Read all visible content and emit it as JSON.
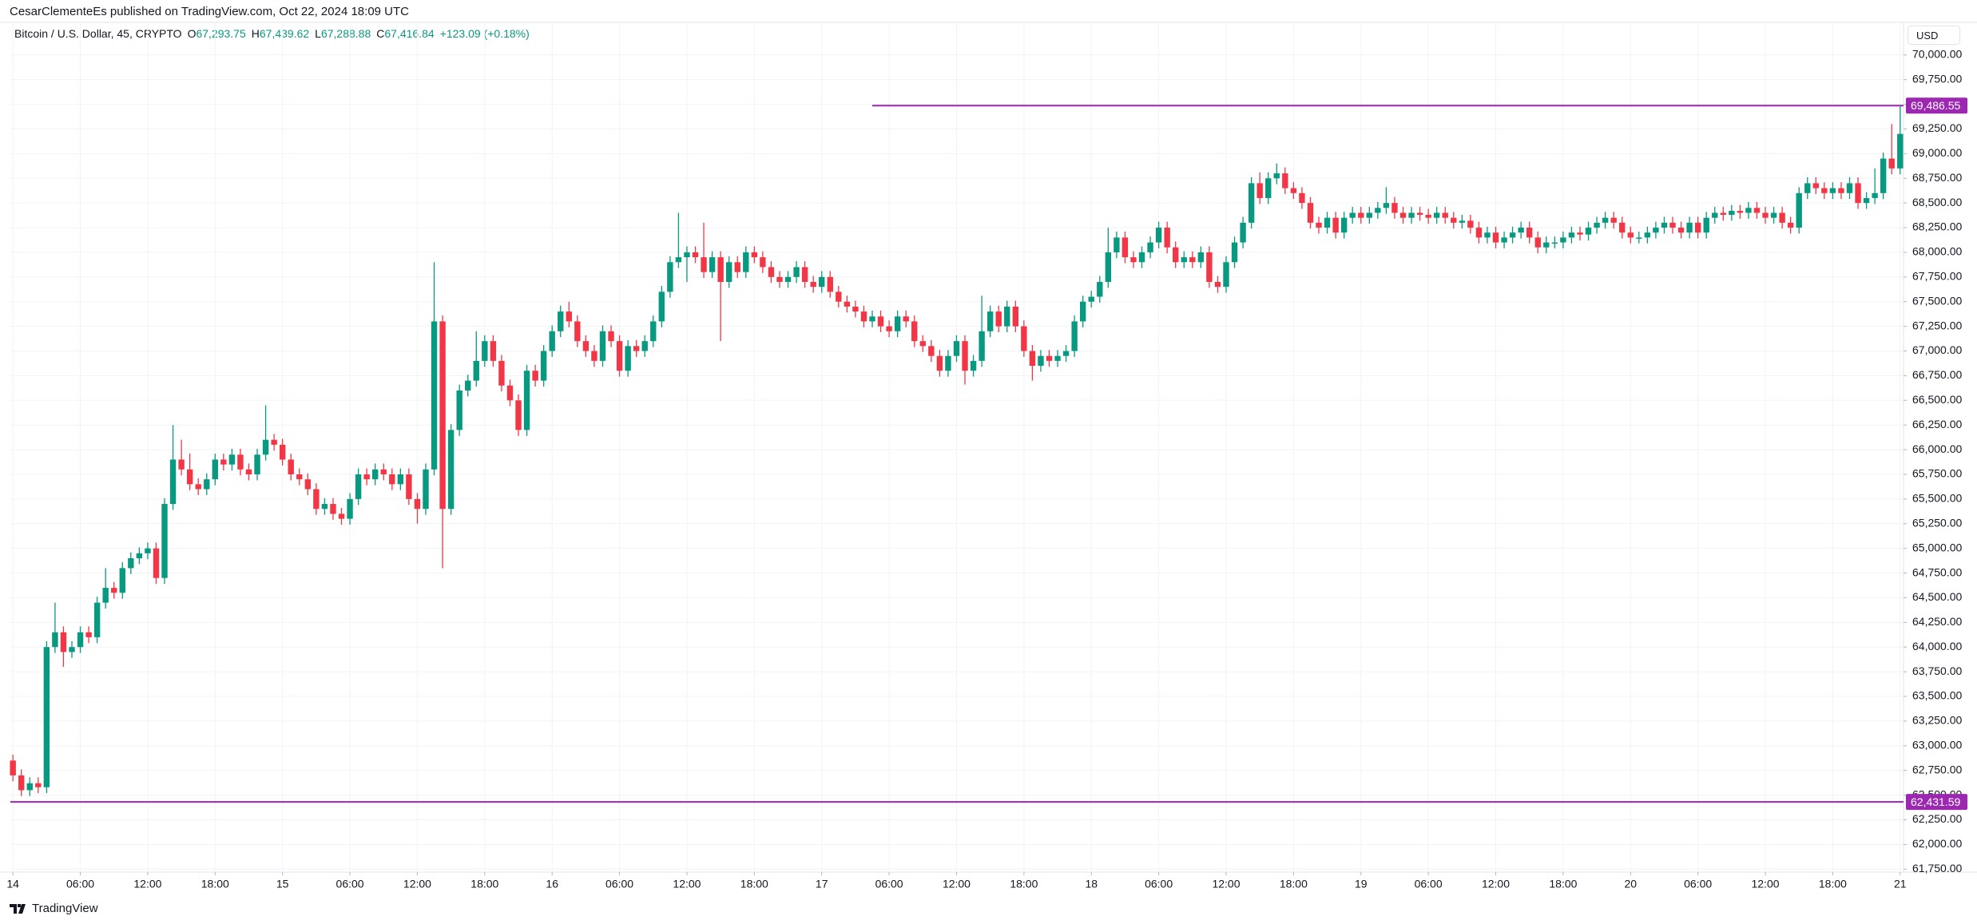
{
  "header": {
    "publisher": "CesarClementeEs published on TradingView.com, Oct 22, 2024 18:09 UTC"
  },
  "chart_data": {
    "type": "candlestick",
    "symbol": "Bitcoin / U.S. Dollar, 45, CRYPTO",
    "legend": [
      {
        "prefix": "O",
        "text": "67,293.75"
      },
      {
        "prefix": "H",
        "text": "67,439.62"
      },
      {
        "prefix": "L",
        "text": "67,288.88"
      },
      {
        "prefix": "C",
        "text": "67,416.84"
      },
      {
        "prefix": "",
        "text": "+123.09 (+0.18%)"
      }
    ],
    "currency": "USD",
    "up_color": "#089981",
    "down_color": "#f23645",
    "grid": true,
    "open": [
      62850,
      62700,
      62550,
      62620,
      62580,
      64000,
      64150,
      63950,
      64000,
      64150,
      64100,
      64450,
      64600,
      64550,
      64800,
      64900,
      64950,
      65000,
      64700,
      65450,
      65900,
      65800,
      65650,
      65600,
      65700,
      65900,
      65850,
      65950,
      65800,
      65750,
      65950,
      66100,
      66050,
      65900,
      65750,
      65700,
      65600,
      65400,
      65450,
      65350,
      65300,
      65500,
      65750,
      65700,
      65800,
      65750,
      65650,
      65750,
      65500,
      65400,
      65800,
      67300,
      65400,
      66200,
      66600,
      66700,
      66900,
      67100,
      66900,
      66650,
      66500,
      66200,
      66800,
      66700,
      67000,
      67200,
      67400,
      67300,
      67100,
      67000,
      66900,
      67200,
      67100,
      66800,
      67050,
      67000,
      67100,
      67300,
      67600,
      67900,
      67950,
      68000,
      67950,
      67800,
      67950,
      67700,
      67900,
      67800,
      68000,
      67950,
      67850,
      67750,
      67700,
      67750,
      67850,
      67700,
      67650,
      67750,
      67600,
      67500,
      67450,
      67400,
      67300,
      67350,
      67250,
      67200,
      67350,
      67300,
      67100,
      67050,
      66950,
      66800,
      66950,
      67100,
      66800,
      66900,
      67200,
      67400,
      67250,
      67450,
      67250,
      67000,
      66850,
      66950,
      66900,
      66950,
      67000,
      67300,
      67500,
      67550,
      67700,
      68000,
      68150,
      67950,
      67900,
      68000,
      68100,
      68250,
      68050,
      67900,
      67950,
      67900,
      68000,
      67700,
      67650,
      67900,
      68100,
      68300,
      68700,
      68550,
      68750,
      68800,
      68650,
      68600,
      68500,
      68300,
      68250,
      68350,
      68200,
      68350,
      68400,
      68350,
      68400,
      68450,
      68500,
      68400,
      68350,
      68400,
      68380,
      68350,
      68400,
      68350,
      68300,
      68320,
      68250,
      68150,
      68200,
      68100,
      68150,
      68200,
      68250,
      68150,
      68050,
      68100,
      68100,
      68150,
      68200,
      68180,
      68250,
      68300,
      68350,
      68300,
      68200,
      68150,
      68150,
      68200,
      68250,
      68300,
      68250,
      68200,
      68300,
      68200,
      68350,
      68400,
      68380,
      68420,
      68400,
      68450,
      68400,
      68350,
      68400,
      68300,
      68250,
      68600,
      68700,
      68650,
      68600,
      68650,
      68600,
      68700,
      68500,
      68550,
      68600,
      68950,
      68850
    ],
    "high": [
      62910,
      62760,
      62680,
      62680,
      64060,
      64450,
      64210,
      64060,
      64210,
      64210,
      64510,
      64800,
      64660,
      64860,
      64960,
      65010,
      65060,
      65060,
      65510,
      66250,
      66100,
      65960,
      65710,
      65760,
      65960,
      65960,
      66010,
      66010,
      65860,
      66010,
      66450,
      66160,
      66110,
      65960,
      65810,
      65760,
      65660,
      65510,
      65510,
      65410,
      65560,
      65810,
      65810,
      65860,
      65860,
      65810,
      65810,
      65810,
      65560,
      65860,
      67900,
      67360,
      66260,
      66660,
      66760,
      67200,
      67160,
      67160,
      66960,
      66710,
      66560,
      66860,
      66860,
      67060,
      67260,
      67460,
      67500,
      67360,
      67160,
      67060,
      67260,
      67260,
      67160,
      67110,
      67110,
      67160,
      67360,
      67660,
      67960,
      68400,
      68060,
      68060,
      68300,
      68010,
      68010,
      67960,
      67960,
      68060,
      68060,
      68010,
      67910,
      67810,
      67810,
      67910,
      67910,
      67760,
      67810,
      67810,
      67660,
      67560,
      67510,
      67460,
      67410,
      67410,
      67310,
      67410,
      67410,
      67360,
      67160,
      67110,
      67010,
      67010,
      67160,
      67160,
      66960,
      67560,
      67460,
      67460,
      67510,
      67510,
      67310,
      67060,
      67010,
      67010,
      67010,
      67060,
      67360,
      67560,
      67610,
      67760,
      68250,
      68210,
      68210,
      68010,
      68060,
      68160,
      68310,
      68310,
      68110,
      68010,
      68010,
      68060,
      68060,
      67760,
      67960,
      68160,
      68360,
      68760,
      68810,
      68810,
      68900,
      68860,
      68710,
      68660,
      68560,
      68360,
      68410,
      68410,
      68410,
      68460,
      68460,
      68460,
      68510,
      68660,
      68560,
      68460,
      68460,
      68460,
      68440,
      68460,
      68460,
      68410,
      68380,
      68380,
      68310,
      68260,
      68260,
      68210,
      68260,
      68310,
      68310,
      68210,
      68160,
      68160,
      68210,
      68260,
      68260,
      68310,
      68360,
      68410,
      68410,
      68360,
      68260,
      68210,
      68260,
      68310,
      68360,
      68360,
      68310,
      68360,
      68360,
      68410,
      68460,
      68460,
      68480,
      68480,
      68510,
      68510,
      68460,
      68460,
      68460,
      68360,
      68660,
      68760,
      68760,
      68710,
      68710,
      68710,
      68760,
      68760,
      68610,
      68850,
      69010,
      69300,
      69486.55
    ],
    "low": [
      62640,
      62490,
      62490,
      62520,
      62520,
      63940,
      63800,
      63890,
      63940,
      64040,
      64040,
      64390,
      64490,
      64490,
      64740,
      64840,
      64890,
      64640,
      64640,
      65390,
      65740,
      65590,
      65540,
      65540,
      65640,
      65790,
      65790,
      65740,
      65690,
      65690,
      65890,
      65990,
      65840,
      65690,
      65640,
      65540,
      65340,
      65340,
      65290,
      65240,
      65240,
      65440,
      65640,
      65640,
      65690,
      65590,
      65590,
      65440,
      65250,
      65340,
      65740,
      64800,
      65340,
      66140,
      66540,
      66640,
      66840,
      66840,
      66590,
      66440,
      66140,
      66140,
      66640,
      66640,
      66940,
      67140,
      67240,
      67040,
      66940,
      66840,
      66840,
      67040,
      66740,
      66740,
      66940,
      66940,
      67040,
      67240,
      67540,
      67840,
      67700,
      67890,
      67740,
      67740,
      67100,
      67640,
      67740,
      67740,
      67890,
      67790,
      67690,
      67640,
      67640,
      67690,
      67640,
      67590,
      67590,
      67540,
      67440,
      67390,
      67340,
      67240,
      67240,
      67190,
      67140,
      67140,
      67240,
      67040,
      66990,
      66890,
      66740,
      66740,
      66890,
      66660,
      66740,
      66840,
      67140,
      67190,
      67190,
      67190,
      66940,
      66700,
      66790,
      66840,
      66840,
      66890,
      66940,
      67240,
      67440,
      67490,
      67640,
      67940,
      67890,
      67840,
      67840,
      67940,
      68040,
      67990,
      67840,
      67840,
      67840,
      67840,
      67640,
      67590,
      67590,
      67840,
      68040,
      68240,
      68490,
      68490,
      68690,
      68590,
      68540,
      68440,
      68240,
      68190,
      68190,
      68140,
      68140,
      68290,
      68290,
      68290,
      68340,
      68390,
      68340,
      68290,
      68290,
      68320,
      68290,
      68290,
      68290,
      68240,
      68240,
      68190,
      68090,
      68090,
      68040,
      68040,
      68090,
      68140,
      68090,
      67990,
      67990,
      68040,
      68040,
      68090,
      68120,
      68120,
      68190,
      68240,
      68240,
      68140,
      68090,
      68090,
      68090,
      68140,
      68190,
      68190,
      68140,
      68140,
      68140,
      68140,
      68290,
      68320,
      68320,
      68340,
      68340,
      68340,
      68290,
      68290,
      68240,
      68190,
      68190,
      68540,
      68590,
      68540,
      68540,
      68540,
      68540,
      68440,
      68440,
      68490,
      68540,
      68790,
      68790
    ],
    "close": [
      62700,
      62550,
      62620,
      62580,
      64000,
      64150,
      63950,
      64000,
      64150,
      64100,
      64450,
      64600,
      64550,
      64800,
      64900,
      64950,
      65000,
      64700,
      65450,
      65900,
      65800,
      65650,
      65600,
      65700,
      65900,
      65850,
      65950,
      65800,
      65750,
      65950,
      66100,
      66050,
      65900,
      65750,
      65700,
      65600,
      65400,
      65450,
      65350,
      65300,
      65500,
      65750,
      65700,
      65800,
      65750,
      65650,
      65750,
      65500,
      65400,
      65800,
      67300,
      65400,
      66200,
      66600,
      66700,
      66900,
      67100,
      66900,
      66650,
      66500,
      66200,
      66800,
      66700,
      67000,
      67200,
      67400,
      67300,
      67100,
      67000,
      66900,
      67200,
      67100,
      66800,
      67050,
      67000,
      67100,
      67300,
      67600,
      67900,
      67950,
      68000,
      67950,
      67800,
      67950,
      67700,
      67900,
      67800,
      68000,
      67950,
      67850,
      67750,
      67700,
      67750,
      67850,
      67700,
      67650,
      67750,
      67600,
      67500,
      67450,
      67400,
      67300,
      67350,
      67250,
      67200,
      67350,
      67300,
      67100,
      67050,
      66950,
      66800,
      66950,
      67100,
      66800,
      66900,
      67200,
      67400,
      67250,
      67450,
      67250,
      67000,
      66850,
      66950,
      66900,
      66950,
      67000,
      67300,
      67500,
      67550,
      67700,
      68000,
      68150,
      67950,
      67900,
      68000,
      68100,
      68250,
      68050,
      67900,
      67950,
      67900,
      68000,
      67700,
      67650,
      67900,
      68100,
      68300,
      68700,
      68550,
      68750,
      68800,
      68650,
      68600,
      68500,
      68300,
      68250,
      68350,
      68200,
      68350,
      68400,
      68350,
      68400,
      68450,
      68500,
      68400,
      68350,
      68400,
      68380,
      68350,
      68400,
      68350,
      68300,
      68320,
      68250,
      68150,
      68200,
      68100,
      68150,
      68200,
      68250,
      68150,
      68050,
      68100,
      68100,
      68150,
      68200,
      68180,
      68250,
      68300,
      68350,
      68300,
      68200,
      68150,
      68150,
      68200,
      68250,
      68300,
      68250,
      68200,
      68300,
      68200,
      68350,
      68400,
      68380,
      68420,
      68400,
      68450,
      68400,
      68350,
      68400,
      68300,
      68250,
      68600,
      68700,
      68650,
      68600,
      68650,
      68600,
      68700,
      68500,
      68550,
      68600,
      68950,
      68850,
      69200
    ],
    "xlim": [
      -0.3,
      224.4
    ],
    "xticks": [
      {
        "value": 0,
        "label": "14"
      },
      {
        "value": 8,
        "label": "06:00"
      },
      {
        "value": 16,
        "label": "12:00"
      },
      {
        "value": 24,
        "label": "18:00"
      },
      {
        "value": 32,
        "label": "15"
      },
      {
        "value": 40,
        "label": "06:00"
      },
      {
        "value": 48,
        "label": "12:00"
      },
      {
        "value": 56,
        "label": "18:00"
      },
      {
        "value": 64,
        "label": "16"
      },
      {
        "value": 72,
        "label": "06:00"
      },
      {
        "value": 80,
        "label": "12:00"
      },
      {
        "value": 88,
        "label": "18:00"
      },
      {
        "value": 96,
        "label": "17"
      },
      {
        "value": 104,
        "label": "06:00"
      },
      {
        "value": 112,
        "label": "12:00"
      },
      {
        "value": 120,
        "label": "18:00"
      },
      {
        "value": 128,
        "label": "18"
      },
      {
        "value": 136,
        "label": "06:00"
      },
      {
        "value": 144,
        "label": "12:00"
      },
      {
        "value": 152,
        "label": "18:00"
      },
      {
        "value": 160,
        "label": "19"
      },
      {
        "value": 168,
        "label": "06:00"
      },
      {
        "value": 176,
        "label": "12:00"
      },
      {
        "value": 184,
        "label": "18:00"
      },
      {
        "value": 192,
        "label": "20"
      },
      {
        "value": 200,
        "label": "06:00"
      },
      {
        "value": 208,
        "label": "12:00"
      },
      {
        "value": 216,
        "label": "18:00"
      },
      {
        "value": 224,
        "label": "21"
      }
    ],
    "ylim": [
      61720,
      70330
    ],
    "yticks": [
      {
        "value": 70000,
        "label": "70,000.00"
      },
      {
        "value": 69750,
        "label": "69,750.00"
      },
      {
        "value": 69500,
        "label": "69,500.00"
      },
      {
        "value": 69250,
        "label": "69,250.00"
      },
      {
        "value": 69000,
        "label": "69,000.00"
      },
      {
        "value": 68750,
        "label": "68,750.00"
      },
      {
        "value": 68500,
        "label": "68,500.00"
      },
      {
        "value": 68250,
        "label": "68,250.00"
      },
      {
        "value": 68000,
        "label": "68,000.00"
      },
      {
        "value": 67750,
        "label": "67,750.00"
      },
      {
        "value": 67500,
        "label": "67,500.00"
      },
      {
        "value": 67250,
        "label": "67,250.00"
      },
      {
        "value": 67000,
        "label": "67,000.00"
      },
      {
        "value": 66750,
        "label": "66,750.00"
      },
      {
        "value": 66500,
        "label": "66,500.00"
      },
      {
        "value": 66250,
        "label": "66,250.00"
      },
      {
        "value": 66000,
        "label": "66,000.00"
      },
      {
        "value": 65750,
        "label": "65,750.00"
      },
      {
        "value": 65500,
        "label": "65,500.00"
      },
      {
        "value": 65250,
        "label": "65,250.00"
      },
      {
        "value": 65000,
        "label": "65,000.00"
      },
      {
        "value": 64750,
        "label": "64,750.00"
      },
      {
        "value": 64500,
        "label": "64,500.00"
      },
      {
        "value": 64250,
        "label": "64,250.00"
      },
      {
        "value": 64000,
        "label": "64,000.00"
      },
      {
        "value": 63750,
        "label": "63,750.00"
      },
      {
        "value": 63500,
        "label": "63,500.00"
      },
      {
        "value": 63250,
        "label": "63,250.00"
      },
      {
        "value": 63000,
        "label": "63,000.00"
      },
      {
        "value": 62750,
        "label": "62,750.00"
      },
      {
        "value": 62500,
        "label": "62,500.00"
      },
      {
        "value": 62250,
        "label": "62,250.00"
      },
      {
        "value": 62000,
        "label": "62,000.00"
      },
      {
        "value": 61750,
        "label": "61,750.00"
      }
    ],
    "lines": [
      {
        "value": 69486.55,
        "label": "69,486.55",
        "x_start": 102,
        "color": "#9c27b0"
      },
      {
        "value": 62431.59,
        "label": "62,431.59",
        "color": "#9c27b0"
      }
    ]
  },
  "footer": {
    "brand": "TradingView"
  }
}
